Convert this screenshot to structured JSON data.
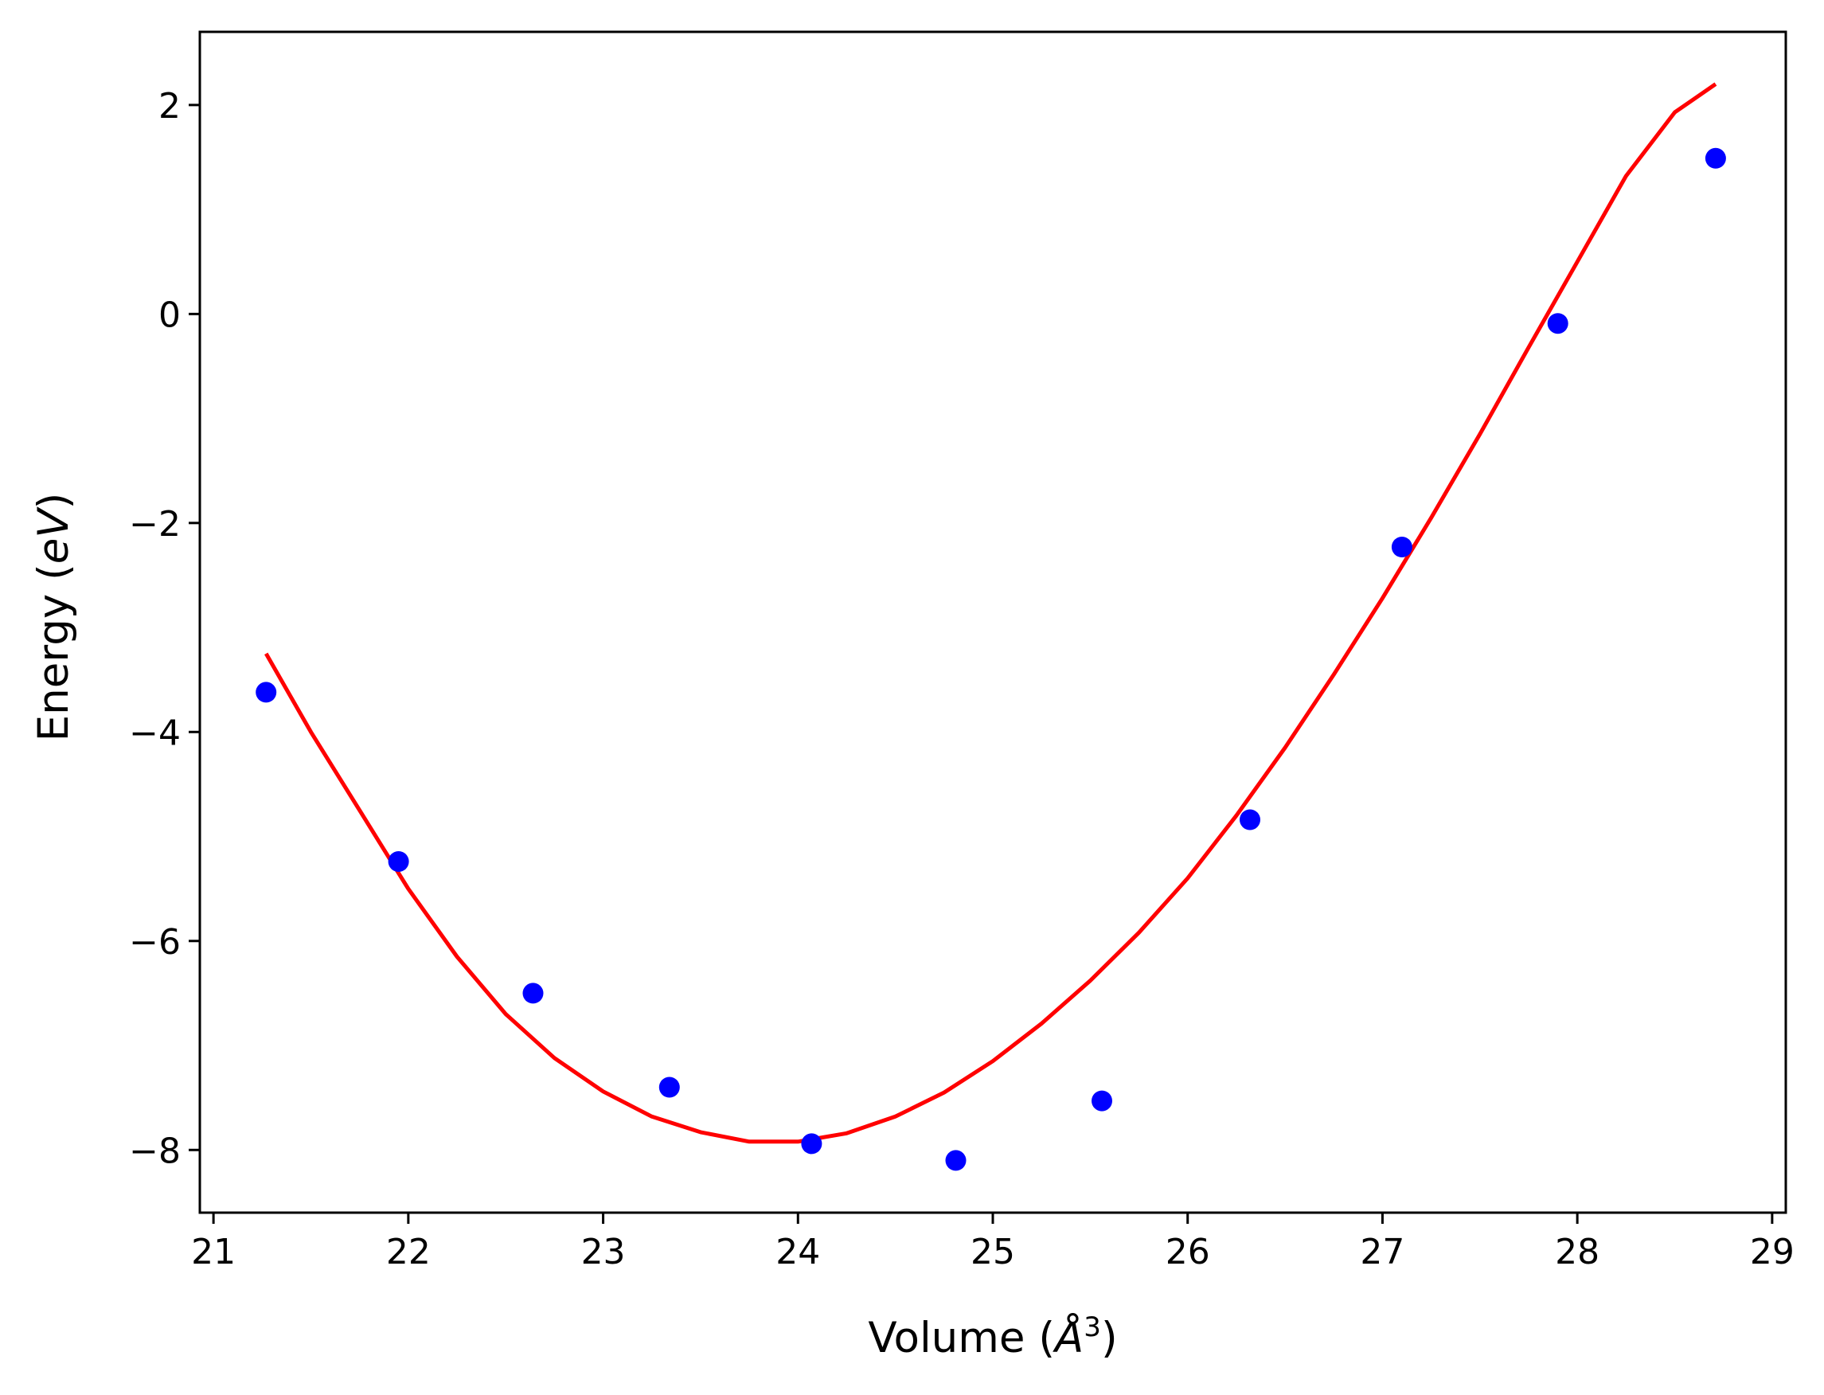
{
  "chart_data": {
    "type": "scatter",
    "xlabel_main": "Volume (",
    "xlabel_unit": "Å",
    "xlabel_sup": "3",
    "xlabel_close": ")",
    "ylabel_main": "Energy (",
    "ylabel_unit": "eV",
    "ylabel_close": ")",
    "xlim": [
      20.93,
      29.07
    ],
    "ylim": [
      -8.6,
      2.7
    ],
    "x_ticks": [
      21,
      22,
      23,
      24,
      25,
      26,
      27,
      28,
      29
    ],
    "x_tick_labels": [
      "21",
      "22",
      "23",
      "24",
      "25",
      "26",
      "27",
      "28",
      "29"
    ],
    "y_ticks": [
      -8,
      -6,
      -4,
      -2,
      0,
      2
    ],
    "y_tick_labels": [
      "−8",
      "−6",
      "−4",
      "−2",
      "0",
      "2"
    ],
    "grid": false,
    "legend": "none",
    "points": {
      "color": "#0000ff",
      "x": [
        21.27,
        21.95,
        22.64,
        23.34,
        24.07,
        24.81,
        25.56,
        26.32,
        27.1,
        27.9,
        28.71
      ],
      "y": [
        -3.62,
        -5.24,
        -6.5,
        -7.4,
        -7.94,
        -8.1,
        -7.53,
        -4.84,
        -2.23,
        -0.09,
        1.49
      ]
    },
    "fit": {
      "color": "#ff0000",
      "x": [
        21.27,
        21.5,
        21.75,
        22.0,
        22.25,
        22.5,
        22.75,
        23.0,
        23.25,
        23.5,
        23.75,
        24.0,
        24.25,
        24.5,
        24.75,
        25.0,
        25.25,
        25.5,
        25.75,
        26.0,
        26.25,
        26.5,
        26.75,
        27.0,
        27.25,
        27.5,
        27.75,
        28.0,
        28.25,
        28.5,
        28.71
      ],
      "y": [
        -3.25,
        -4.0,
        -4.75,
        -5.5,
        -6.15,
        -6.7,
        -7.12,
        -7.44,
        -7.68,
        -7.83,
        -7.92,
        -7.92,
        -7.84,
        -7.68,
        -7.45,
        -7.15,
        -6.79,
        -6.38,
        -5.92,
        -5.4,
        -4.8,
        -4.15,
        -3.45,
        -2.72,
        -1.95,
        -1.15,
        -0.32,
        0.5,
        1.32,
        1.93,
        2.2
      ]
    }
  }
}
